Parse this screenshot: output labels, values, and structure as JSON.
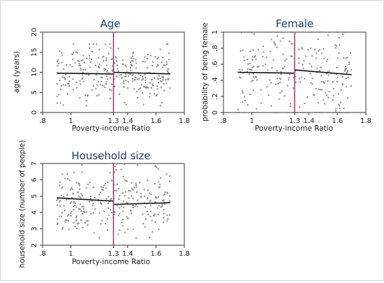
{
  "colors": {
    "background": "#ffffff",
    "frame": "#cfcfcf",
    "plot_border": "#333333",
    "points": "#888888",
    "fit_line": "#111111",
    "cutoff_line": "#c2185b",
    "title": "#1f3d6b"
  },
  "chart_data": [
    {
      "type": "scatter",
      "title": "Age",
      "xlabel": "Poverty-income Ratio",
      "ylabel": "age (years)",
      "xlim": [
        0.8,
        1.8
      ],
      "ylim": [
        0,
        20
      ],
      "xticks": [
        0.8,
        1.0,
        1.3,
        1.4,
        1.6,
        1.8
      ],
      "xtick_labels": [
        ".8",
        "1",
        "1.3",
        "1.4",
        "1.6",
        "1.8"
      ],
      "yticks": [
        0,
        5,
        10,
        15,
        20
      ],
      "ytick_labels": [
        "0",
        "5",
        "10",
        "15",
        "20"
      ],
      "cutoff": 1.3,
      "fit_left": [
        [
          0.9,
          9.8
        ],
        [
          1.3,
          9.6
        ]
      ],
      "fit_right": [
        [
          1.3,
          10.0
        ],
        [
          1.7,
          9.6
        ]
      ],
      "points_x_range": [
        0.9,
        1.7
      ],
      "points_y_center": 9.8,
      "points_y_spread": 3.5,
      "points_ylim": [
        1.5,
        17
      ],
      "n_points": 300,
      "grid": false,
      "legend": "none"
    },
    {
      "type": "scatter",
      "title": "Female",
      "xlabel": "Poverty-income Ratio",
      "ylabel": "probability of being female",
      "xlim": [
        0.8,
        1.8
      ],
      "ylim": [
        0,
        1
      ],
      "xticks": [
        0.8,
        1.0,
        1.3,
        1.4,
        1.6,
        1.8
      ],
      "xtick_labels": [
        ".8",
        "1",
        "1.3",
        "1.4",
        "1.6",
        "1.8"
      ],
      "yticks": [
        0,
        0.2,
        0.4,
        0.6,
        0.8,
        1.0
      ],
      "ytick_labels": [
        "0",
        ".2",
        ".4",
        ".6",
        ".8",
        "1"
      ],
      "cutoff": 1.3,
      "fit_left": [
        [
          0.9,
          0.5
        ],
        [
          1.3,
          0.49
        ]
      ],
      "fit_right": [
        [
          1.3,
          0.53
        ],
        [
          1.7,
          0.47
        ]
      ],
      "points_x_range": [
        0.9,
        1.7
      ],
      "points_y_center": 0.5,
      "points_y_spread": 0.28,
      "points_ylim": [
        0,
        1
      ],
      "points_extreme_share": 0.18,
      "n_points": 300,
      "grid": false,
      "legend": "none"
    },
    {
      "type": "scatter",
      "title": "Household size",
      "xlabel": "Poverty-income Ratio",
      "ylabel": "household size (number of people)",
      "xlim": [
        0.8,
        1.8
      ],
      "ylim": [
        2,
        7
      ],
      "xticks": [
        0.8,
        1.0,
        1.3,
        1.4,
        1.6,
        1.8
      ],
      "xtick_labels": [
        ".8",
        "1",
        "1.3",
        "1.4",
        "1.6",
        "1.8"
      ],
      "yticks": [
        2,
        3,
        4,
        5,
        6,
        7
      ],
      "ytick_labels": [
        "2",
        "3",
        "4",
        "5",
        "6",
        "7"
      ],
      "cutoff": 1.3,
      "fit_left": [
        [
          0.9,
          4.9
        ],
        [
          1.3,
          4.7
        ]
      ],
      "fit_right": [
        [
          1.3,
          4.5
        ],
        [
          1.7,
          4.6
        ]
      ],
      "points_x_range": [
        0.9,
        1.7
      ],
      "points_y_center": 4.7,
      "points_y_spread": 1.0,
      "points_ylim": [
        2.2,
        7
      ],
      "n_points": 300,
      "grid": false,
      "legend": "none"
    }
  ]
}
